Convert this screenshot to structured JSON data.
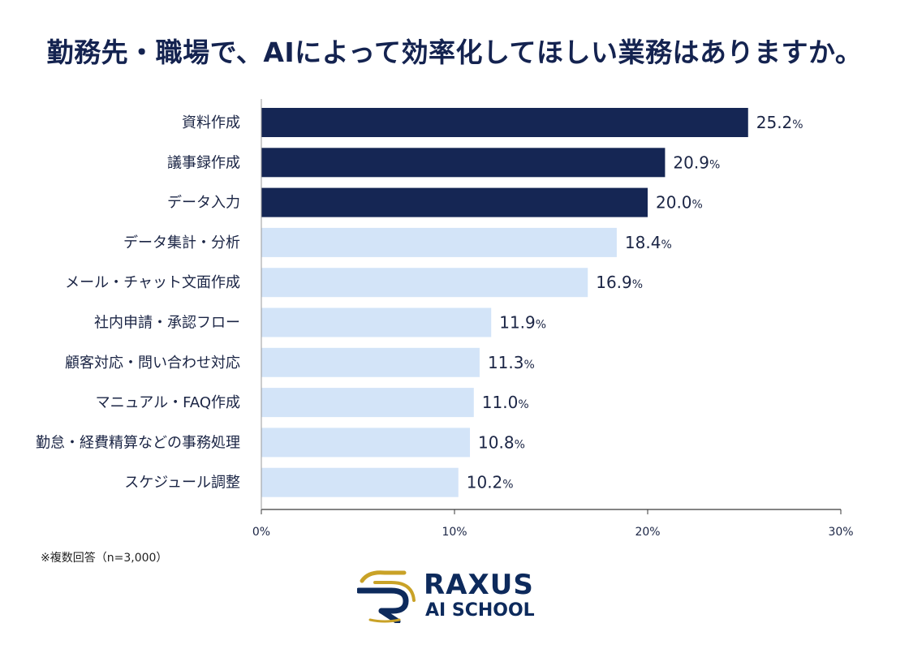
{
  "chart_data": {
    "type": "bar",
    "orientation": "horizontal",
    "title": "勤務先・職場で、AIによって効率化してほしい業務はありますか。",
    "categories": [
      "資料作成",
      "議事録作成",
      "データ入力",
      "データ集計・分析",
      "メール・チャット文面作成",
      "社内申請・承認フロー",
      "顧客対応・問い合わせ対応",
      "マニュアル・FAQ作成",
      "勤怠・経費精算などの事務処理",
      "スケジュール調整"
    ],
    "values": [
      25.2,
      20.9,
      20.0,
      18.4,
      16.9,
      11.9,
      11.3,
      11.0,
      10.8,
      10.2
    ],
    "value_labels": [
      "25.2",
      "20.9",
      "20.0",
      "18.4",
      "16.9",
      "11.9",
      "11.3",
      "11.0",
      "10.8",
      "10.2"
    ],
    "value_unit": "%",
    "highlight_count": 3,
    "colors": {
      "highlight": "#152654",
      "normal": "#d3e4f8"
    },
    "xlim": [
      0,
      30
    ],
    "xticks": [
      "0%",
      "10%",
      "20%",
      "30%"
    ],
    "xtick_values": [
      0,
      10,
      20,
      30
    ],
    "grid": false,
    "xlabel": "",
    "ylabel": ""
  },
  "footnote": "※複数回答（n=3,000）",
  "logo": {
    "line1": "RAXUS",
    "line2": "AI SCHOOL"
  }
}
